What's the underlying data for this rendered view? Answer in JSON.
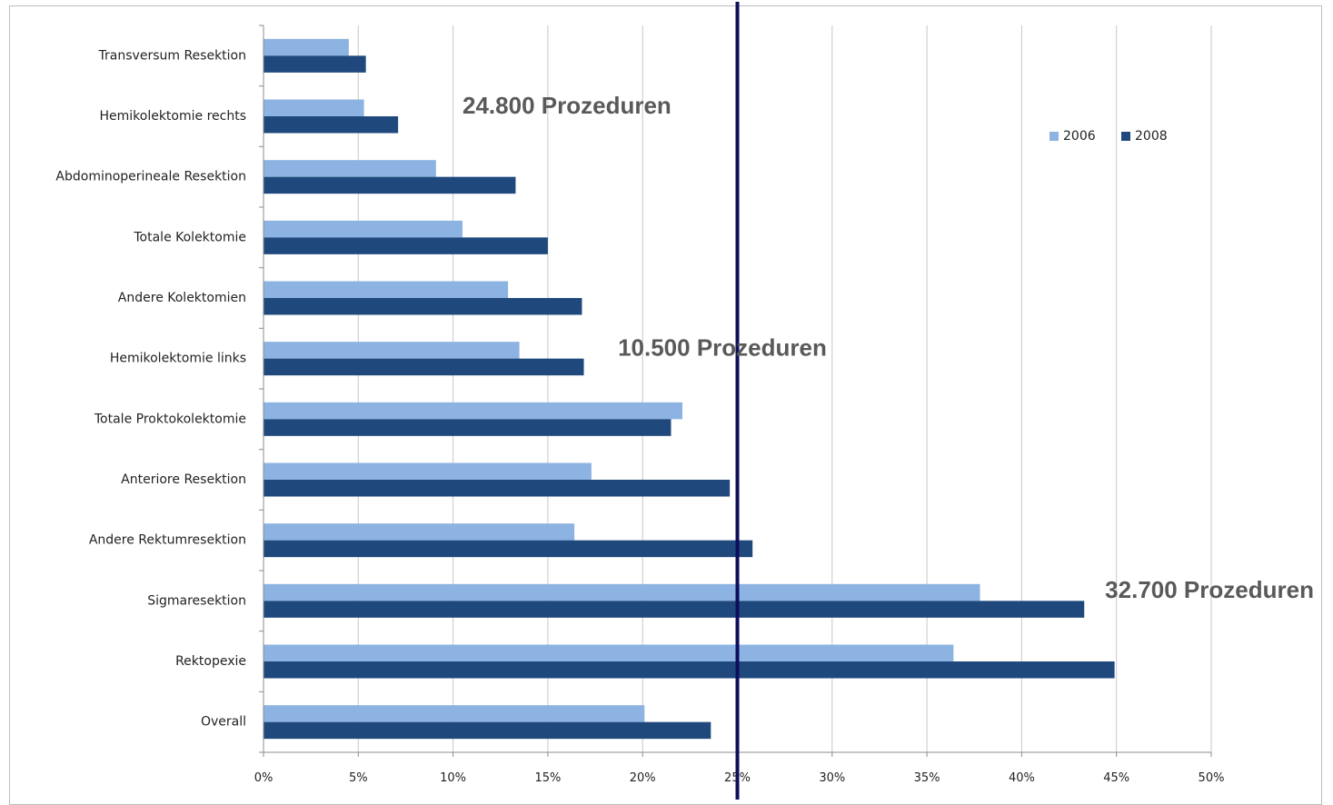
{
  "chart_data": {
    "type": "bar",
    "orientation": "horizontal",
    "categories": [
      "Transversum Resektion",
      "Hemikolektomie rechts",
      "Abdominoperineale Resektion",
      "Totale Kolektomie",
      "Andere Kolektomien",
      "Hemikolektomie links",
      "Totale Proktokolektomie",
      "Anteriore Resektion",
      "Andere Rektumresektion",
      "Sigmaresektion",
      "Rektopexie",
      "Overall"
    ],
    "series": [
      {
        "name": "2006",
        "color": "#8db3e2",
        "values": [
          4.5,
          5.3,
          9.1,
          10.5,
          12.9,
          13.5,
          22.1,
          17.3,
          16.4,
          37.8,
          36.4,
          20.1
        ]
      },
      {
        "name": "2008",
        "color": "#1f497d",
        "values": [
          5.4,
          7.1,
          13.3,
          15.0,
          16.8,
          16.9,
          21.5,
          24.6,
          25.8,
          43.3,
          44.9,
          23.6
        ]
      }
    ],
    "xlim": [
      0,
      50
    ],
    "xticks": [
      "0%",
      "5%",
      "10%",
      "15%",
      "20%",
      "25%",
      "30%",
      "35%",
      "40%",
      "45%",
      "50%"
    ],
    "grid": "vertical",
    "legend": "top-right",
    "reference_line": {
      "value": 25,
      "color": "#0d0d5c"
    },
    "annotations": [
      {
        "text": "24.800 Prozeduren",
        "x": 10.5,
        "category": "Hemikolektomie rechts"
      },
      {
        "text": "10.500 Prozeduren",
        "x": 18.7,
        "category": "Hemikolektomie links"
      },
      {
        "text": "32.700 Prozeduren",
        "x": 44.4,
        "category": "Sigmaresektion"
      }
    ]
  }
}
